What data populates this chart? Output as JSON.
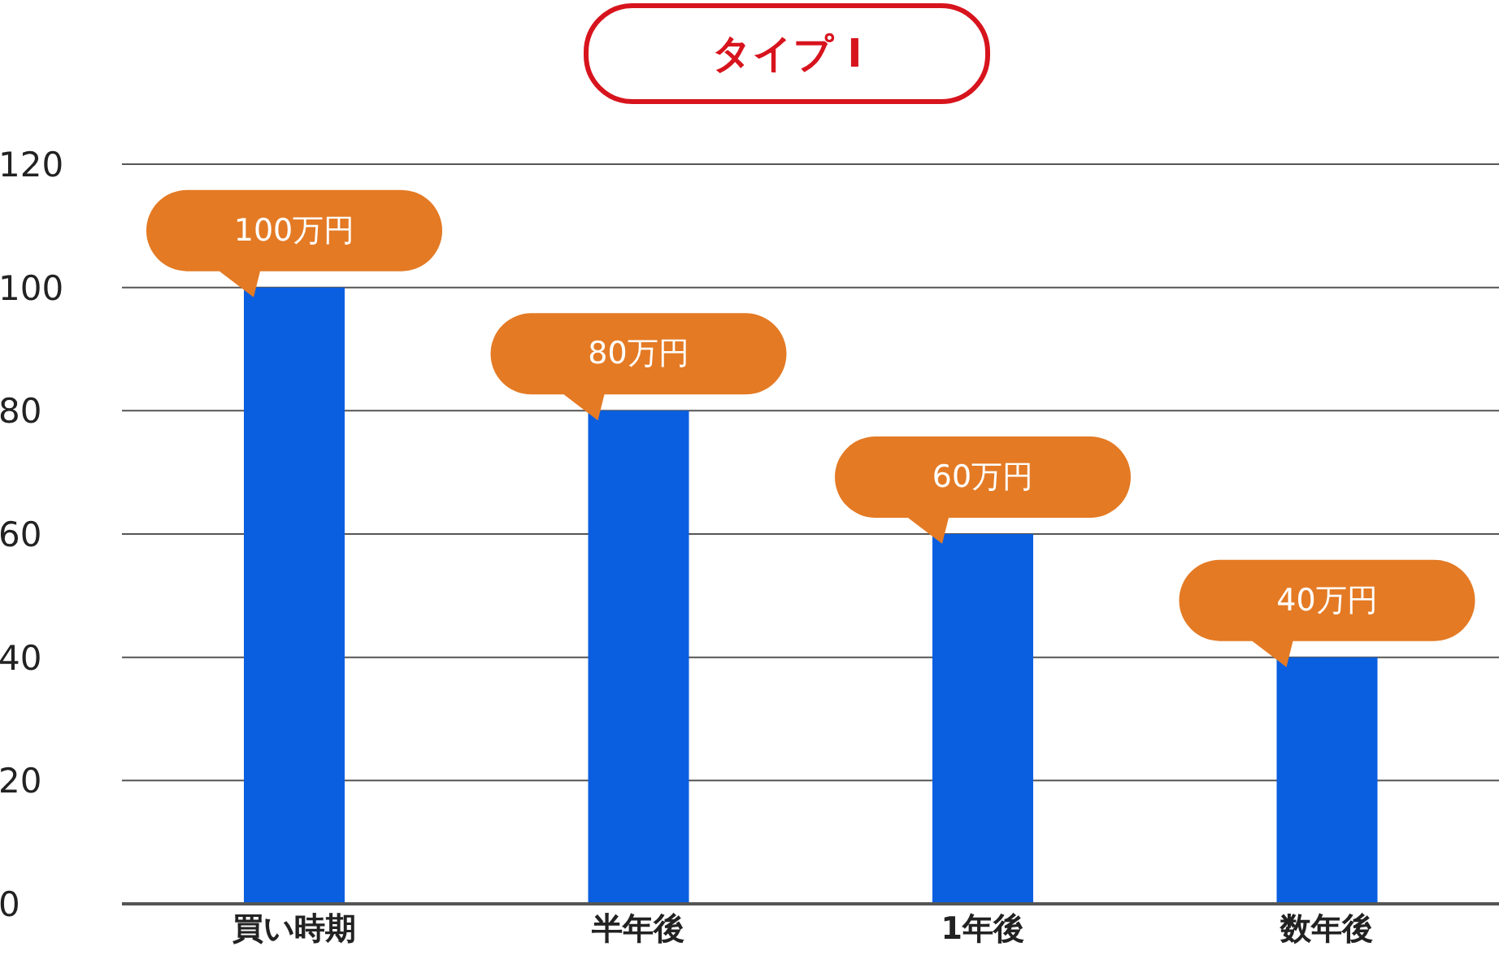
{
  "chart_data": {
    "type": "bar",
    "title": "タイプ I",
    "categories": [
      "買い時期",
      "半年後",
      "1年後",
      "数年後"
    ],
    "values": [
      100,
      80,
      60,
      40
    ],
    "color": "#0a5fe0",
    "value_labels": [
      "100万円",
      "80万円",
      "60万円",
      "40万円"
    ],
    "ylim": [
      0,
      120
    ],
    "yticks": [
      0,
      20,
      40,
      60,
      80,
      100,
      120
    ],
    "grid": "y",
    "legend": false
  }
}
